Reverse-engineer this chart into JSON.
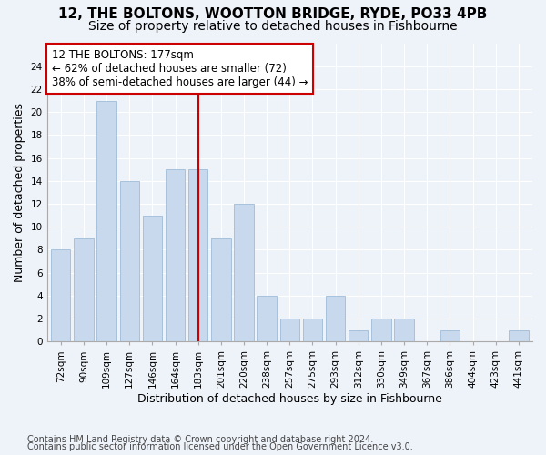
{
  "title": "12, THE BOLTONS, WOOTTON BRIDGE, RYDE, PO33 4PB",
  "subtitle": "Size of property relative to detached houses in Fishbourne",
  "xlabel": "Distribution of detached houses by size in Fishbourne",
  "ylabel": "Number of detached properties",
  "categories": [
    "72sqm",
    "90sqm",
    "109sqm",
    "127sqm",
    "146sqm",
    "164sqm",
    "183sqm",
    "201sqm",
    "220sqm",
    "238sqm",
    "257sqm",
    "275sqm",
    "293sqm",
    "312sqm",
    "330sqm",
    "349sqm",
    "367sqm",
    "386sqm",
    "404sqm",
    "423sqm",
    "441sqm"
  ],
  "values": [
    8,
    9,
    21,
    14,
    11,
    15,
    15,
    9,
    12,
    4,
    2,
    2,
    4,
    1,
    2,
    2,
    0,
    1,
    0,
    0,
    1
  ],
  "bar_color": "#c8d9ed",
  "bar_edge_color": "#a0bcd8",
  "vline_index": 6,
  "vline_color": "#cc0000",
  "annotation_line1": "12 THE BOLTONS: 177sqm",
  "annotation_line2": "← 62% of detached houses are smaller (72)",
  "annotation_line3": "38% of semi-detached houses are larger (44) →",
  "annotation_box_color": "#cc0000",
  "ylim": [
    0,
    26
  ],
  "yticks": [
    0,
    2,
    4,
    6,
    8,
    10,
    12,
    14,
    16,
    18,
    20,
    22,
    24
  ],
  "footnote1": "Contains HM Land Registry data © Crown copyright and database right 2024.",
  "footnote2": "Contains public sector information licensed under the Open Government Licence v3.0.",
  "background_color": "#eef2f9",
  "plot_background": "#eef2f9",
  "grid_color": "#ffffff",
  "title_fontsize": 11,
  "subtitle_fontsize": 10,
  "xlabel_fontsize": 9,
  "ylabel_fontsize": 9,
  "tick_fontsize": 7.5,
  "annotation_fontsize": 8.5,
  "footnote_fontsize": 7
}
